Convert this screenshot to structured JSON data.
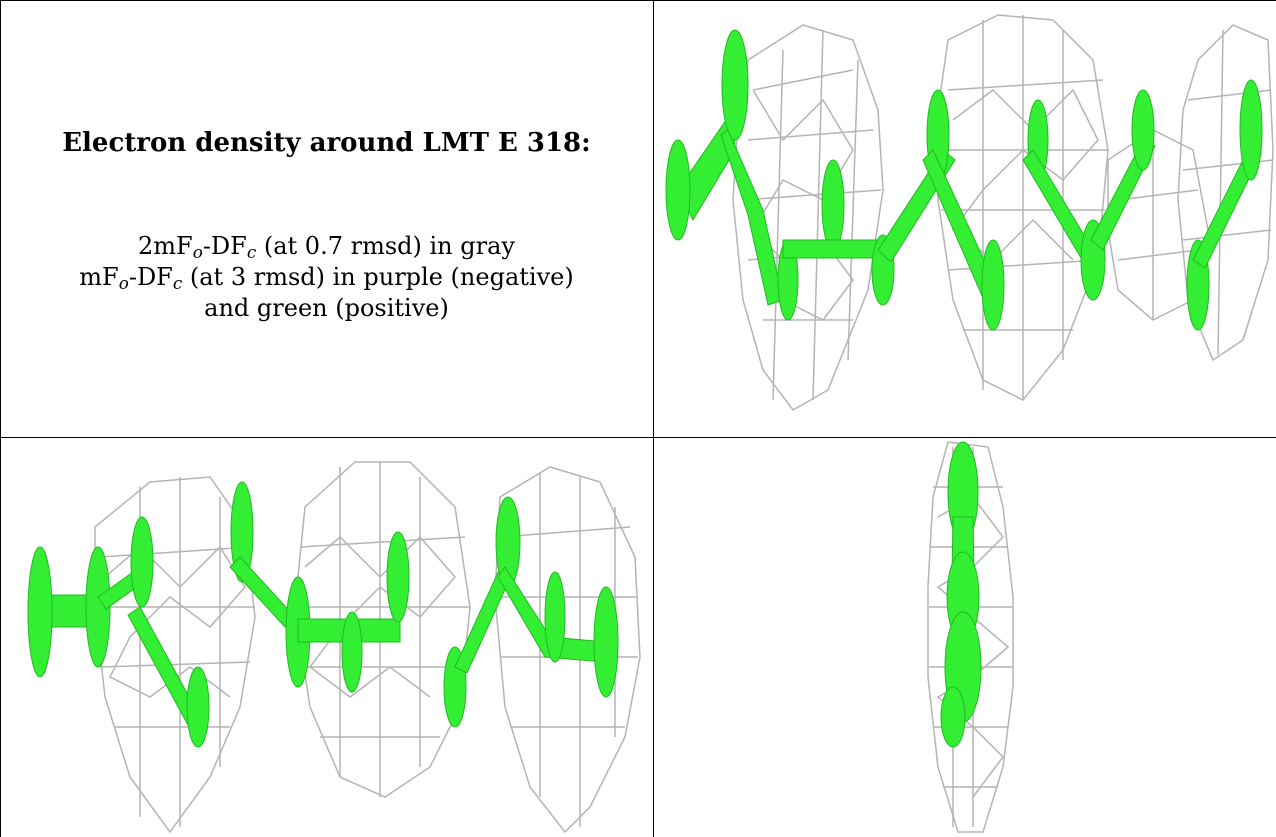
{
  "caption": {
    "title": "Electron density around LMT E 318:",
    "line1": {
      "pre": "2mF",
      "sub1": "o",
      "mid": "-DF",
      "sub2": "c",
      "post": " (at 0.7 rmsd) in gray"
    },
    "line2": {
      "pre": "mF",
      "sub1": "o",
      "mid": "-DF",
      "sub2": "c",
      "post": " (at 3 rmsd) in purple (negative)"
    },
    "line3": "and green (positive)"
  },
  "colors": {
    "positive_density": "#33ee33",
    "mesh_2fofc": "#b4b4b4",
    "negative_density": "#9933cc",
    "border": "#000000"
  },
  "panels": [
    {
      "id": "view-1",
      "shows": "green-positive-density-and-gray-mesh"
    },
    {
      "id": "view-2",
      "shows": "green-positive-density-and-gray-mesh"
    },
    {
      "id": "view-3",
      "shows": "green-positive-density-and-gray-mesh"
    }
  ]
}
